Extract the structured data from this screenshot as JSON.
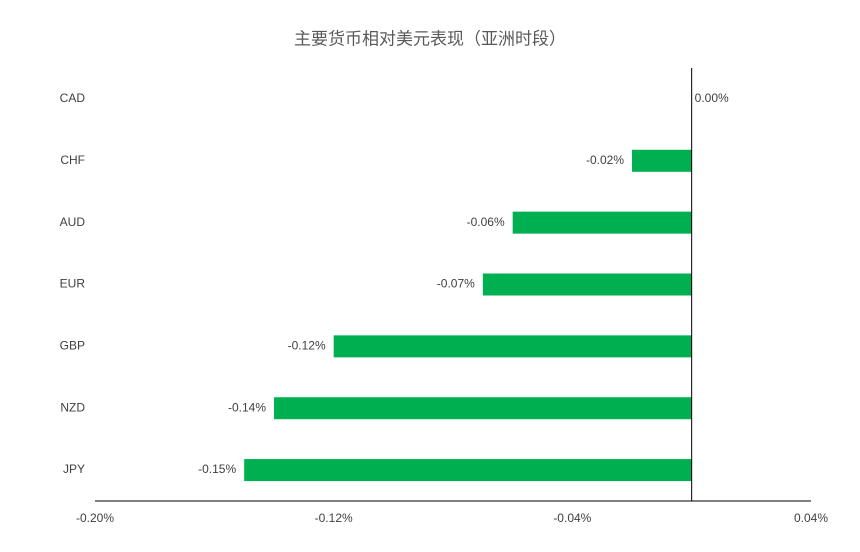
{
  "chart_data": {
    "type": "hbar",
    "title": "主要货币相对美元表现（亚洲时段）",
    "categories": [
      "CAD",
      "CHF",
      "AUD",
      "EUR",
      "GBP",
      "NZD",
      "JPY"
    ],
    "values": [
      0,
      -0.02,
      -0.06,
      -0.07,
      -0.12,
      -0.14,
      -0.15
    ],
    "value_labels": [
      "0.00%",
      "-0.02%",
      "-0.06%",
      "-0.07%",
      "-0.12%",
      "-0.14%",
      "-0.15%"
    ],
    "color": "#00b050",
    "xlim": [
      -0.2,
      0.04
    ],
    "xticks": [
      {
        "value": -0.2,
        "label": "-0.20%"
      },
      {
        "value": -0.12,
        "label": "-0.12%"
      },
      {
        "value": -0.04,
        "label": "-0.04%"
      },
      {
        "value": 0.04,
        "label": "0.04%"
      }
    ]
  }
}
